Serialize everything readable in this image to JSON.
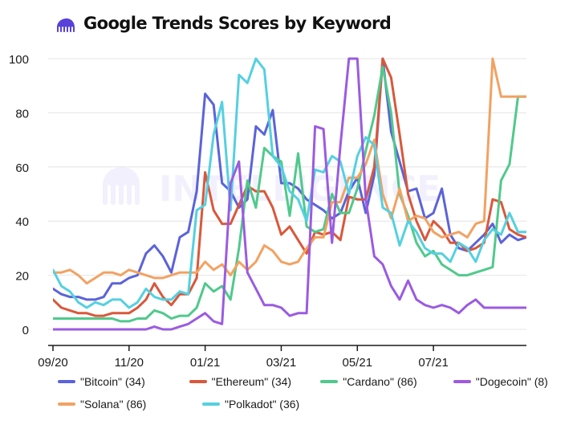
{
  "title": "Google Trends Scores by Keyword",
  "logo": {
    "icon": "kraken-icon",
    "color": "#5741d9"
  },
  "watermark": {
    "text": "INTELLIGENCE",
    "icon": "kraken-icon"
  },
  "chart_data": {
    "type": "line",
    "title": "Google Trends Scores by Keyword",
    "xlabel": "",
    "ylabel": "",
    "ylim": [
      0,
      100
    ],
    "yticks": [
      0,
      20,
      40,
      60,
      80,
      100
    ],
    "x_tick_labels": [
      "09/20",
      "11/20",
      "01/21",
      "03/21",
      "05/21",
      "07/21"
    ],
    "x_tick_index": [
      0,
      9,
      18,
      27,
      36,
      45
    ],
    "grid": true,
    "legend_position": "bottom",
    "legend_rows": [
      [
        0,
        1,
        2,
        3
      ],
      [
        4,
        5
      ]
    ],
    "series": [
      {
        "name": "\"Bitcoin\" (34)",
        "color": "#5b63d9",
        "values": [
          15,
          13,
          12,
          12,
          11,
          11,
          12,
          17,
          17,
          19,
          20,
          28,
          31,
          27,
          21,
          34,
          36,
          51,
          87,
          83,
          54,
          51,
          45,
          48,
          75,
          72,
          81,
          54,
          54,
          52,
          48,
          46,
          44,
          41,
          43,
          51,
          56,
          43,
          57,
          100,
          73,
          62,
          51,
          52,
          41,
          43,
          52,
          35,
          30,
          29,
          32,
          35,
          39,
          32,
          35,
          33,
          34
        ]
      },
      {
        "name": "\"Ethereum\" (34)",
        "color": "#d9583b",
        "values": [
          11,
          8,
          7,
          6,
          6,
          5,
          5,
          6,
          6,
          6,
          8,
          11,
          17,
          12,
          9,
          13,
          13,
          19,
          58,
          44,
          39,
          39,
          46,
          53,
          51,
          51,
          45,
          35,
          38,
          33,
          28,
          36,
          35,
          36,
          33,
          49,
          48,
          48,
          60,
          100,
          93,
          72,
          50,
          40,
          33,
          40,
          37,
          32,
          32,
          29,
          30,
          32,
          48,
          47,
          37,
          35,
          34
        ]
      },
      {
        "name": "\"Cardano\" (86)",
        "color": "#50c98c",
        "values": [
          4,
          4,
          4,
          4,
          4,
          4,
          4,
          4,
          3,
          3,
          4,
          4,
          7,
          6,
          4,
          5,
          5,
          8,
          17,
          14,
          16,
          11,
          30,
          55,
          45,
          67,
          64,
          62,
          42,
          65,
          38,
          36,
          37,
          50,
          43,
          43,
          52,
          66,
          79,
          97,
          80,
          50,
          42,
          32,
          27,
          29,
          24,
          22,
          20,
          20,
          21,
          22,
          23,
          55,
          61,
          86,
          86
        ]
      },
      {
        "name": "\"Dogecoin\" (8)",
        "color": "#9b5be0",
        "values": [
          0,
          0,
          0,
          0,
          0,
          0,
          0,
          0,
          0,
          0,
          0,
          0,
          1,
          0,
          0,
          1,
          2,
          4,
          6,
          3,
          2,
          54,
          62,
          21,
          15,
          9,
          9,
          8,
          5,
          6,
          6,
          75,
          74,
          32,
          68,
          100,
          100,
          48,
          27,
          24,
          16,
          11,
          18,
          11,
          9,
          8,
          9,
          8,
          6,
          9,
          11,
          8,
          8,
          8,
          8,
          8,
          8
        ]
      },
      {
        "name": "\"Solana\" (86)",
        "color": "#f2a262",
        "values": [
          21,
          21,
          22,
          20,
          17,
          19,
          21,
          21,
          20,
          22,
          21,
          20,
          19,
          19,
          20,
          21,
          21,
          21,
          25,
          22,
          24,
          20,
          25,
          22,
          25,
          31,
          29,
          25,
          24,
          25,
          30,
          34,
          34,
          47,
          47,
          56,
          56,
          61,
          70,
          50,
          41,
          52,
          40,
          42,
          41,
          36,
          34,
          35,
          36,
          34,
          39,
          40,
          100,
          86,
          86,
          86,
          86
        ]
      },
      {
        "name": "\"Polkadot\" (36)",
        "color": "#55d0e0",
        "values": [
          22,
          16,
          14,
          10,
          8,
          10,
          9,
          11,
          11,
          8,
          10,
          15,
          12,
          11,
          11,
          14,
          13,
          44,
          46,
          72,
          84,
          44,
          94,
          91,
          100,
          96,
          64,
          60,
          51,
          48,
          40,
          59,
          58,
          64,
          62,
          50,
          64,
          71,
          68,
          45,
          43,
          31,
          40,
          36,
          30,
          28,
          28,
          25,
          32,
          30,
          25,
          33,
          37,
          35,
          43,
          36,
          36
        ]
      }
    ]
  }
}
